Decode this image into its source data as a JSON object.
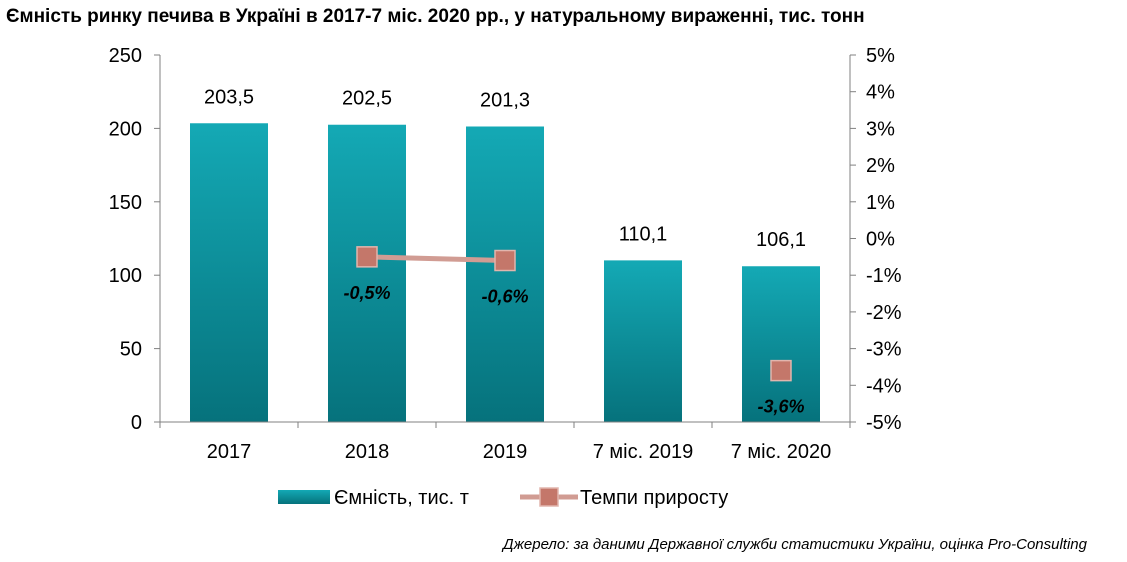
{
  "title": "Ємність ринку печива в Україні в 2017-7 міс. 2020 рр., у натуральному вираженні, тис. тонн",
  "source": "Джерело: за даними Державної служби статистики України, оцінка Pro-Consulting",
  "colors": {
    "bar_top": "#14a9b5",
    "bar_bottom": "#06727c",
    "line": "#d19c93",
    "marker_fill": "#c4776a",
    "marker_stroke": "#e2b5ad",
    "axis": "#808080"
  },
  "chart_data": {
    "type": "bar",
    "categories": [
      "2017",
      "2018",
      "2019",
      "7 міс. 2019",
      "7 міс. 2020"
    ],
    "series": [
      {
        "name": "Ємність, тис. т",
        "type": "bar",
        "axis": "left",
        "values": [
          203.5,
          202.5,
          201.3,
          110.1,
          106.1
        ],
        "labels": [
          "203,5",
          "202,5",
          "201,3",
          "110,1",
          "106,1"
        ]
      },
      {
        "name": "Темпи приросту",
        "type": "line",
        "axis": "right",
        "values": [
          null,
          -0.5,
          -0.6,
          null,
          -3.6
        ],
        "labels": [
          "",
          "-0,5%",
          "-0,6%",
          "",
          "-3,6%"
        ]
      }
    ],
    "y_left": {
      "range": [
        0,
        250
      ],
      "ticks": [
        0,
        50,
        100,
        150,
        200,
        250
      ],
      "tick_labels": [
        "0",
        "50",
        "100",
        "150",
        "200",
        "250"
      ]
    },
    "y_right": {
      "range": [
        -5,
        5
      ],
      "ticks": [
        -5,
        -4,
        -3,
        -2,
        -1,
        0,
        1,
        2,
        3,
        4,
        5
      ],
      "tick_labels": [
        "-5%",
        "-4%",
        "-3%",
        "-2%",
        "-1%",
        "0%",
        "1%",
        "2%",
        "3%",
        "4%",
        "5%"
      ]
    },
    "grid": false,
    "legend_position": "bottom"
  }
}
